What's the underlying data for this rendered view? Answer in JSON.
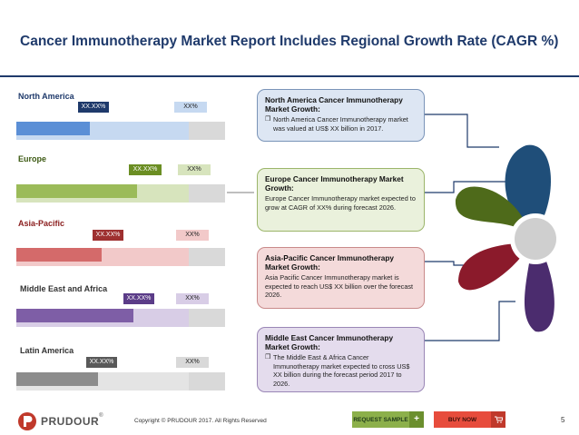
{
  "title": "Cancer Immunotherapy Market Report Includes Regional Growth Rate (CAGR %)",
  "regions": [
    {
      "label": "North America",
      "value_tag": "XX.XX%",
      "cagr_tag": "XX%",
      "fill_pct": 35
    },
    {
      "label": "Europe",
      "value_tag": "XX.XX%",
      "cagr_tag": "XX%",
      "fill_pct": 58
    },
    {
      "label": "Asia-Pacific",
      "value_tag": "XX.XX%",
      "cagr_tag": "XX%",
      "fill_pct": 41
    },
    {
      "label": "Middle East and Africa",
      "value_tag": "XX.XX%",
      "cagr_tag": "XX%",
      "fill_pct": 56
    },
    {
      "label": "Latin America",
      "value_tag": "XX.XX%",
      "cagr_tag": "XX%",
      "fill_pct": 39
    }
  ],
  "boxes": [
    {
      "heading": "North America Cancer Immunotherapy Market Growth:",
      "bullet": "❒",
      "body": "North America Cancer Immunotherapy market was valued at US$ XX billion in 2017."
    },
    {
      "heading": "Europe Cancer Immunotherapy Market Growth:",
      "body": "Europe Cancer Immunotherapy market expected to grow at CAGR of XX% during forecast 2026."
    },
    {
      "heading": "Asia-Pacific Cancer Immunotherapy Market Growth:",
      "body": "Asia Pacific Cancer Immunotherapy market is expected to reach US$ XX billion over the forecast 2026."
    },
    {
      "heading": "Middle East Cancer Immunotherapy Market Growth:",
      "bullet": "❒",
      "body": "The Middle East & Africa Cancer Immunotherapy market expected to cross US$ XX billion during the forecast period 2017 to 2026."
    }
  ],
  "footer": {
    "brand": "PRUDOUR",
    "trademark": "®",
    "copyright": "Copyright © PRUDOUR 2017. All Rights Reserved",
    "request_sample": "REQUEST SAMPLE",
    "request_icon": "+",
    "buy_now": "BUY NOW",
    "page": "5"
  },
  "colors": {
    "title": "#1f3a6b",
    "na_dark": "#5b8fd6",
    "na_light": "#c6d9f1",
    "eu_dark": "#9bbb59",
    "eu_light": "#d7e4bd",
    "ap_dark": "#d46a6a",
    "ap_light": "#f2c9c9",
    "me_dark": "#7e5ea6",
    "me_light": "#d8cde6",
    "la_dark": "#8c8c8c",
    "la_light": "#d0d0d0"
  }
}
